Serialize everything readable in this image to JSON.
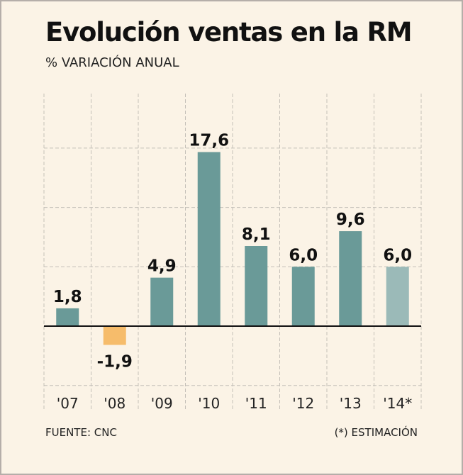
{
  "title": "Evolución ventas en la RM",
  "subtitle": "% VARIACIÓN ANUAL",
  "source": "FUENTE: CNC",
  "note": "(*) ESTIMACIÓN",
  "colors": {
    "background": "#fbf3e6",
    "positive_bar": "#6a9a98",
    "negative_bar": "#f6bc6b",
    "estimate_bar": "#9bbab8",
    "gridline": "#c4c0b8",
    "axis": "#111111"
  },
  "chart_data": {
    "type": "bar",
    "title": "Evolución ventas en la RM",
    "subtitle": "% VARIACIÓN ANUAL",
    "categories": [
      "'07",
      "'08",
      "'09",
      "'10",
      "'11",
      "'12",
      "'13",
      "'14*"
    ],
    "values": [
      1.8,
      -1.9,
      4.9,
      17.6,
      8.1,
      6.0,
      9.6,
      6.0
    ],
    "value_labels": [
      "1,8",
      "-1,9",
      "4,9",
      "17,6",
      "8,1",
      "6,0",
      "9,6",
      "6,0"
    ],
    "estimated": [
      false,
      false,
      false,
      false,
      false,
      false,
      false,
      true
    ],
    "ylim": [
      -6,
      20
    ],
    "grid": true,
    "legend": "none"
  }
}
